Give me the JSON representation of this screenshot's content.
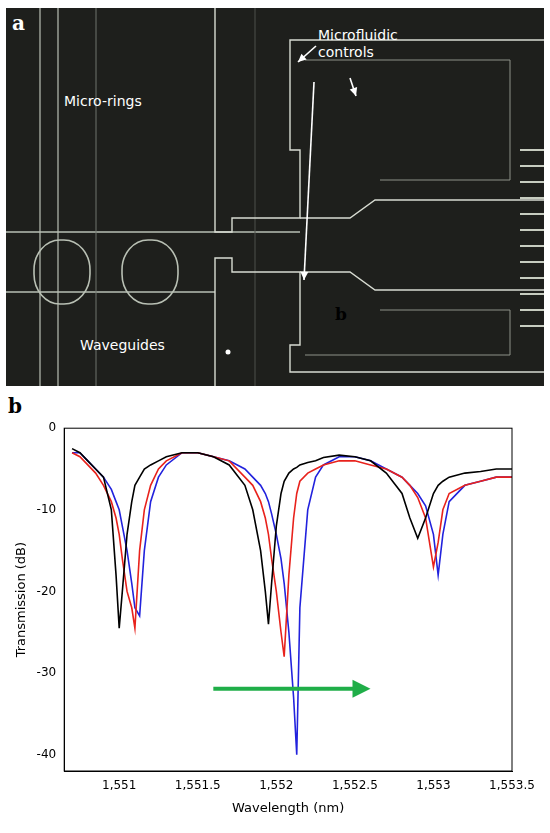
{
  "panel_a": {
    "letter": "a",
    "labels": {
      "rings": "Micro-rings",
      "controls": "Microfluidic controls",
      "waveguides": "Waveguides"
    },
    "inner_letter": "b"
  },
  "panel_b_letter": "b",
  "chart_data": {
    "type": "line",
    "x_label": "Wavelength (nm)",
    "y_label": "Transmission (dB)",
    "grid": false,
    "xlim": [
      1550.65,
      1553.5
    ],
    "xticks": [
      {
        "value": 1551,
        "label": "1,551"
      },
      {
        "value": 1551.5,
        "label": "1,551.5"
      },
      {
        "value": 1552,
        "label": "1,552"
      },
      {
        "value": 1552.5,
        "label": "1,552.5"
      },
      {
        "value": 1553,
        "label": "1,553"
      },
      {
        "value": 1553.5,
        "label": "1,553.5"
      }
    ],
    "ylim": [
      -42,
      0
    ],
    "yticks": [
      -40,
      -30,
      -20,
      -10,
      0
    ],
    "x": [
      1550.7,
      1550.75,
      1550.8,
      1550.85,
      1550.9,
      1550.95,
      1550.98,
      1551.0,
      1551.02,
      1551.05,
      1551.08,
      1551.1,
      1551.13,
      1551.16,
      1551.2,
      1551.25,
      1551.3,
      1551.4,
      1551.5,
      1551.6,
      1551.7,
      1551.8,
      1551.85,
      1551.9,
      1551.93,
      1551.95,
      1551.97,
      1552.0,
      1552.03,
      1552.05,
      1552.08,
      1552.11,
      1552.13,
      1552.15,
      1552.2,
      1552.25,
      1552.3,
      1552.4,
      1552.5,
      1552.6,
      1552.7,
      1552.8,
      1552.85,
      1552.9,
      1552.95,
      1553.0,
      1553.03,
      1553.06,
      1553.1,
      1553.2,
      1553.3,
      1553.4,
      1553.5
    ],
    "series": [
      {
        "color": "#000000",
        "values": [
          -2.5,
          -3,
          -4,
          -5,
          -6,
          -10,
          -18,
          -24.5,
          -20,
          -13,
          -9,
          -7,
          -6,
          -5,
          -4.5,
          -4,
          -3.5,
          -3,
          -3,
          -3.5,
          -4.5,
          -7,
          -10,
          -15,
          -20,
          -24,
          -19,
          -12,
          -8,
          -6.5,
          -5.5,
          -5,
          -4.8,
          -4.5,
          -4.2,
          -4,
          -3.6,
          -3.3,
          -3.5,
          -4,
          -5.5,
          -8,
          -11,
          -13.5,
          -11,
          -8,
          -7,
          -6.5,
          -6,
          -5.5,
          -5.3,
          -5,
          -5
        ]
      },
      {
        "color": "#e8221c",
        "values": [
          -3,
          -3.5,
          -4.5,
          -5.5,
          -7,
          -9,
          -11,
          -13,
          -16,
          -20,
          -22,
          -24.5,
          -15,
          -10,
          -7,
          -5,
          -4,
          -3,
          -3,
          -3.5,
          -4,
          -6,
          -7,
          -9,
          -11,
          -13,
          -16,
          -20,
          -25,
          -28,
          -18,
          -11,
          -8,
          -6.5,
          -5.5,
          -5,
          -4.5,
          -4,
          -4,
          -4.5,
          -5,
          -6,
          -7,
          -8.5,
          -11,
          -17,
          -14,
          -10,
          -8,
          -7,
          -6.5,
          -6,
          -6
        ]
      },
      {
        "color": "#2222dd",
        "values": [
          -3,
          -3,
          -4,
          -5,
          -6,
          -7.5,
          -9,
          -10,
          -12,
          -15,
          -19,
          -22,
          -23,
          -15,
          -9,
          -6,
          -4.5,
          -3,
          -3,
          -3.5,
          -4,
          -5,
          -6,
          -7,
          -8,
          -9,
          -10.5,
          -13,
          -16,
          -19,
          -25,
          -33,
          -40,
          -22,
          -10,
          -6,
          -4.5,
          -3.5,
          -3.5,
          -4,
          -5,
          -6,
          -7,
          -8,
          -9.5,
          -13,
          -18,
          -13,
          -9,
          -7,
          -6.5,
          -6,
          -6
        ]
      }
    ]
  }
}
